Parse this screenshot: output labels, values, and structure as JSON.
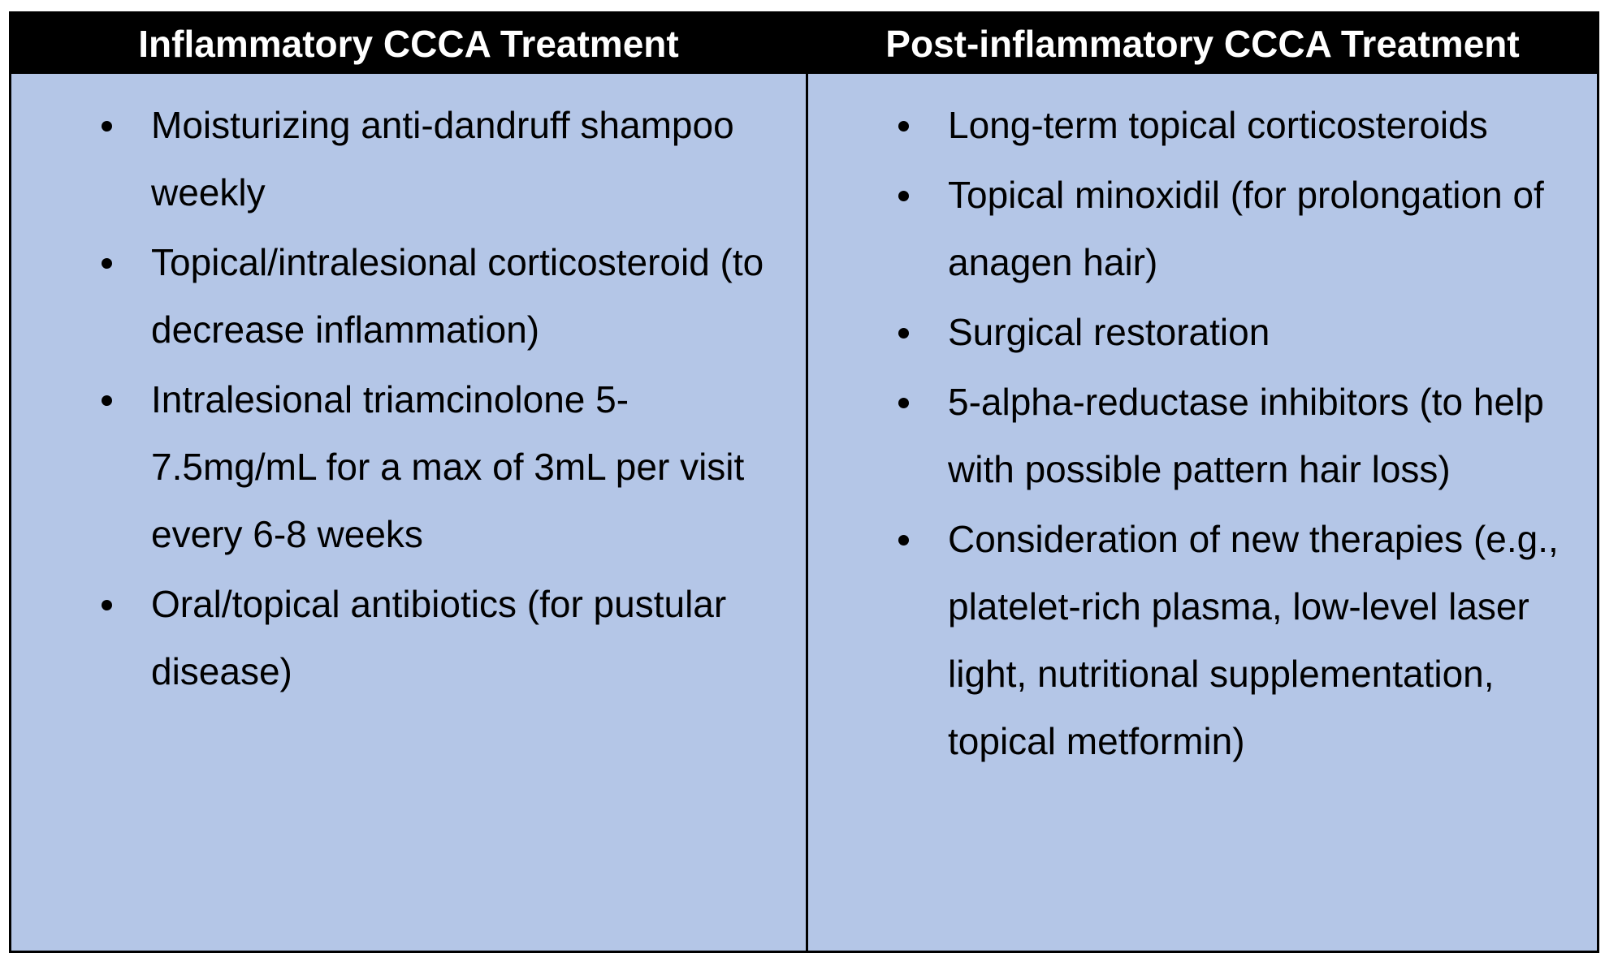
{
  "table": {
    "header": {
      "left": "Inflammatory CCCA Treatment",
      "right": "Post-inflammatory CCCA Treatment"
    },
    "left_items": [
      "Moisturizing anti-dandruff shampoo weekly",
      "Topical/intralesional corticosteroid (to decrease inflammation)",
      "Intralesional triamcinolone 5-7.5mg/mL for a max of 3mL per visit every 6-8 weeks",
      "Oral/topical antibiotics (for pustular disease)"
    ],
    "right_items": [
      "Long-term topical corticosteroids",
      "Topical minoxidil (for prolongation of anagen hair)",
      "Surgical restoration",
      "5-alpha-reductase inhibitors (to help with possible pattern hair loss)",
      "Consideration of new therapies (e.g., platelet-rich plasma, low-level laser light, nutritional supplementation, topical metformin)"
    ]
  },
  "colors": {
    "header_bg": "#000000",
    "header_text": "#ffffff",
    "body_bg": "#b4c6e7",
    "border": "#000000"
  }
}
